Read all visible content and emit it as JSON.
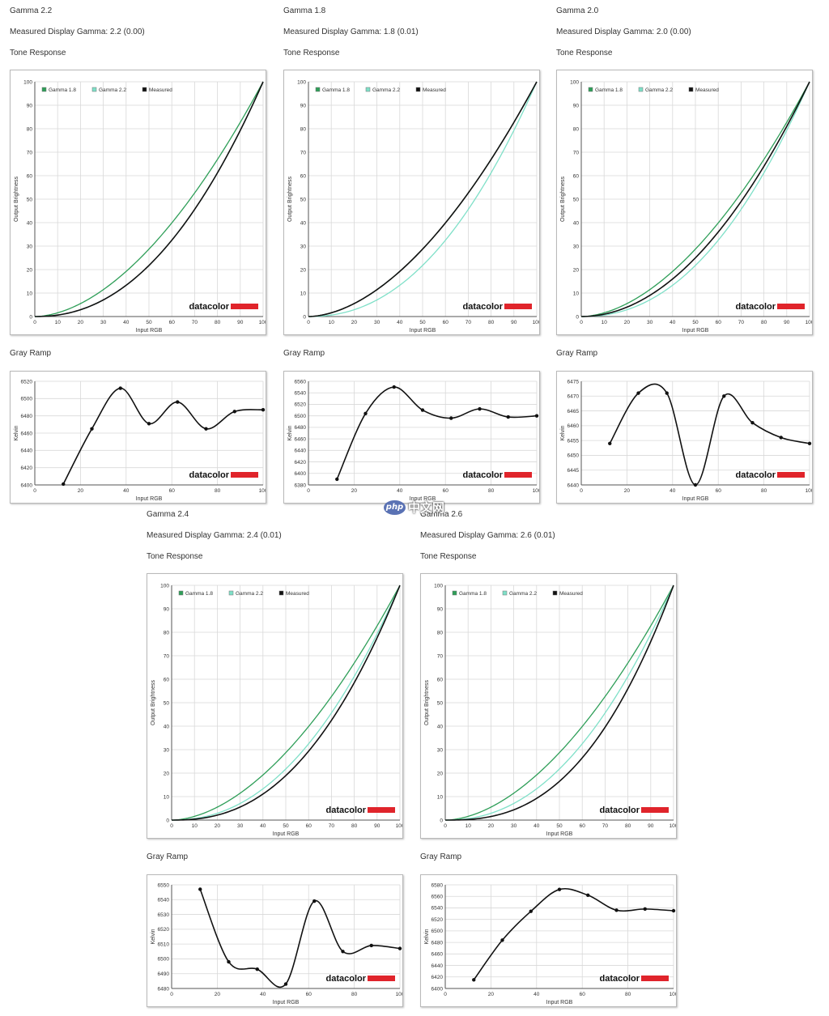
{
  "colors": {
    "gamma18": "#2e9e58",
    "gamma22": "#7fe0c8",
    "measured": "#111111",
    "grid": "#d8d8d8",
    "brand_red": "#e0242b"
  },
  "common": {
    "measured_prefix": "Measured Display Gamma: ",
    "tone_heading": "Tone Response",
    "ramp_heading": "Gray Ramp",
    "tone_xlabel": "Input RGB",
    "tone_ylabel": "Output Brightness",
    "ramp_xlabel": "Input RGB",
    "ramp_ylabel": "Kelvin",
    "legend": [
      "Gamma 1.8",
      "Gamma 2.2",
      "Measured"
    ],
    "brand": "datacolor"
  },
  "watermark": {
    "logo_text": "php",
    "text": "中文网"
  },
  "panels": [
    {
      "title": "Gamma 2.2",
      "measured": "Measured Display Gamma: 2.2 (0.00)"
    },
    {
      "title": "Gamma 1.8",
      "measured": "Measured Display Gamma: 1.8 (0.01)"
    },
    {
      "title": "Gamma 2.0",
      "measured": "Measured Display Gamma: 2.0 (0.00)"
    },
    {
      "title": "Gamma 2.4",
      "measured": "Measured Display Gamma: 2.4 (0.01)"
    },
    {
      "title": "Gamma 2.6",
      "measured": "Measured Display Gamma: 2.6 (0.01)"
    }
  ],
  "chart_data": [
    {
      "type": "line",
      "panel": "Gamma 2.2",
      "chart": "Tone Response",
      "xlabel": "Input RGB",
      "ylabel": "Output Brightness",
      "xlim": [
        0,
        100
      ],
      "ylim": [
        0,
        100
      ],
      "xticks": [
        0,
        10,
        20,
        30,
        40,
        50,
        60,
        70,
        80,
        90,
        100
      ],
      "yticks": [
        0,
        10,
        20,
        30,
        40,
        50,
        60,
        70,
        80,
        90,
        100
      ],
      "grid": true,
      "legend_position": "top-left",
      "series": [
        {
          "name": "Gamma 1.8",
          "gamma": 1.8
        },
        {
          "name": "Gamma 2.2",
          "gamma": 2.2
        },
        {
          "name": "Measured",
          "gamma": 2.2
        }
      ]
    },
    {
      "type": "line",
      "panel": "Gamma 2.2",
      "chart": "Gray Ramp",
      "xlabel": "Input RGB",
      "ylabel": "Kelvin",
      "xlim": [
        0,
        100
      ],
      "ylim": [
        6400,
        6520
      ],
      "xticks": [
        0,
        20,
        40,
        60,
        80,
        100
      ],
      "yticks": [
        6400,
        6420,
        6440,
        6460,
        6480,
        6500,
        6520
      ],
      "grid": true,
      "series": [
        {
          "name": "Measured",
          "x": [
            12.5,
            25,
            37.5,
            50,
            62.5,
            75,
            87.5,
            100
          ],
          "y": [
            6401,
            6465,
            6512,
            6471,
            6496,
            6465,
            6485,
            6487
          ]
        }
      ]
    },
    {
      "type": "line",
      "panel": "Gamma 1.8",
      "chart": "Tone Response",
      "xlabel": "Input RGB",
      "ylabel": "Output Brightness",
      "xlim": [
        0,
        100
      ],
      "ylim": [
        0,
        100
      ],
      "xticks": [
        0,
        10,
        20,
        30,
        40,
        50,
        60,
        70,
        80,
        90,
        100
      ],
      "yticks": [
        0,
        10,
        20,
        30,
        40,
        50,
        60,
        70,
        80,
        90,
        100
      ],
      "grid": true,
      "legend_position": "top-left",
      "series": [
        {
          "name": "Gamma 1.8",
          "gamma": 1.8
        },
        {
          "name": "Gamma 2.2",
          "gamma": 2.2
        },
        {
          "name": "Measured",
          "gamma": 1.8
        }
      ]
    },
    {
      "type": "line",
      "panel": "Gamma 1.8",
      "chart": "Gray Ramp",
      "xlabel": "Input RGB",
      "ylabel": "Kelvin",
      "xlim": [
        0,
        100
      ],
      "ylim": [
        6380,
        6560
      ],
      "xticks": [
        0,
        20,
        40,
        60,
        80,
        100
      ],
      "yticks": [
        6380,
        6400,
        6420,
        6440,
        6460,
        6480,
        6500,
        6520,
        6540,
        6560
      ],
      "grid": true,
      "series": [
        {
          "name": "Measured",
          "x": [
            12.5,
            25,
            37.5,
            50,
            62.5,
            75,
            87.5,
            100
          ],
          "y": [
            6390,
            6504,
            6550,
            6510,
            6496,
            6512,
            6498,
            6500
          ]
        }
      ]
    },
    {
      "type": "line",
      "panel": "Gamma 2.0",
      "chart": "Tone Response",
      "xlabel": "Input RGB",
      "ylabel": "Output Brightness",
      "xlim": [
        0,
        100
      ],
      "ylim": [
        0,
        100
      ],
      "xticks": [
        0,
        10,
        20,
        30,
        40,
        50,
        60,
        70,
        80,
        90,
        100
      ],
      "yticks": [
        0,
        10,
        20,
        30,
        40,
        50,
        60,
        70,
        80,
        90,
        100
      ],
      "grid": true,
      "legend_position": "top-left",
      "series": [
        {
          "name": "Gamma 1.8",
          "gamma": 1.8
        },
        {
          "name": "Gamma 2.2",
          "gamma": 2.2
        },
        {
          "name": "Measured",
          "gamma": 2.0
        }
      ]
    },
    {
      "type": "line",
      "panel": "Gamma 2.0",
      "chart": "Gray Ramp",
      "xlabel": "Input RGB",
      "ylabel": "Kelvin",
      "xlim": [
        0,
        100
      ],
      "ylim": [
        6440,
        6475
      ],
      "xticks": [
        0,
        20,
        40,
        60,
        80,
        100
      ],
      "yticks": [
        6440,
        6445,
        6450,
        6455,
        6460,
        6465,
        6470,
        6475
      ],
      "grid": true,
      "series": [
        {
          "name": "Measured",
          "x": [
            12.5,
            25,
            37.5,
            50,
            62.5,
            75,
            87.5,
            100
          ],
          "y": [
            6454,
            6471,
            6471,
            6440,
            6470,
            6461,
            6456,
            6454
          ]
        }
      ]
    },
    {
      "type": "line",
      "panel": "Gamma 2.4",
      "chart": "Tone Response",
      "xlabel": "Input RGB",
      "ylabel": "Output Brightness",
      "xlim": [
        0,
        100
      ],
      "ylim": [
        0,
        100
      ],
      "xticks": [
        0,
        10,
        20,
        30,
        40,
        50,
        60,
        70,
        80,
        90,
        100
      ],
      "yticks": [
        0,
        10,
        20,
        30,
        40,
        50,
        60,
        70,
        80,
        90,
        100
      ],
      "grid": true,
      "legend_position": "top-left",
      "series": [
        {
          "name": "Gamma 1.8",
          "gamma": 1.8
        },
        {
          "name": "Gamma 2.2",
          "gamma": 2.2
        },
        {
          "name": "Measured",
          "gamma": 2.4
        }
      ]
    },
    {
      "type": "line",
      "panel": "Gamma 2.4",
      "chart": "Gray Ramp",
      "xlabel": "Input RGB",
      "ylabel": "Kelvin",
      "xlim": [
        0,
        100
      ],
      "ylim": [
        6480,
        6550
      ],
      "xticks": [
        0,
        20,
        40,
        60,
        80,
        100
      ],
      "yticks": [
        6480,
        6490,
        6500,
        6510,
        6520,
        6530,
        6540,
        6550
      ],
      "grid": true,
      "series": [
        {
          "name": "Measured",
          "x": [
            12.5,
            25,
            37.5,
            50,
            62.5,
            75,
            87.5,
            100
          ],
          "y": [
            6547,
            6498,
            6493,
            6483,
            6539,
            6505,
            6509,
            6507
          ]
        }
      ]
    },
    {
      "type": "line",
      "panel": "Gamma 2.6",
      "chart": "Tone Response",
      "xlabel": "Input RGB",
      "ylabel": "Output Brightness",
      "xlim": [
        0,
        100
      ],
      "ylim": [
        0,
        100
      ],
      "xticks": [
        0,
        10,
        20,
        30,
        40,
        50,
        60,
        70,
        80,
        90,
        100
      ],
      "yticks": [
        0,
        10,
        20,
        30,
        40,
        50,
        60,
        70,
        80,
        90,
        100
      ],
      "grid": true,
      "legend_position": "top-left",
      "series": [
        {
          "name": "Gamma 1.8",
          "gamma": 1.8
        },
        {
          "name": "Gamma 2.2",
          "gamma": 2.2
        },
        {
          "name": "Measured",
          "gamma": 2.6
        }
      ]
    },
    {
      "type": "line",
      "panel": "Gamma 2.6",
      "chart": "Gray Ramp",
      "xlabel": "Input RGB",
      "ylabel": "Kelvin",
      "xlim": [
        0,
        100
      ],
      "ylim": [
        6400,
        6580
      ],
      "xticks": [
        0,
        20,
        40,
        60,
        80,
        100
      ],
      "yticks": [
        6400,
        6420,
        6440,
        6460,
        6480,
        6500,
        6520,
        6540,
        6560,
        6580
      ],
      "grid": true,
      "series": [
        {
          "name": "Measured",
          "x": [
            12.5,
            25,
            37.5,
            50,
            62.5,
            75,
            87.5,
            100
          ],
          "y": [
            6415,
            6484,
            6534,
            6572,
            6562,
            6536,
            6538,
            6535
          ]
        }
      ]
    }
  ]
}
